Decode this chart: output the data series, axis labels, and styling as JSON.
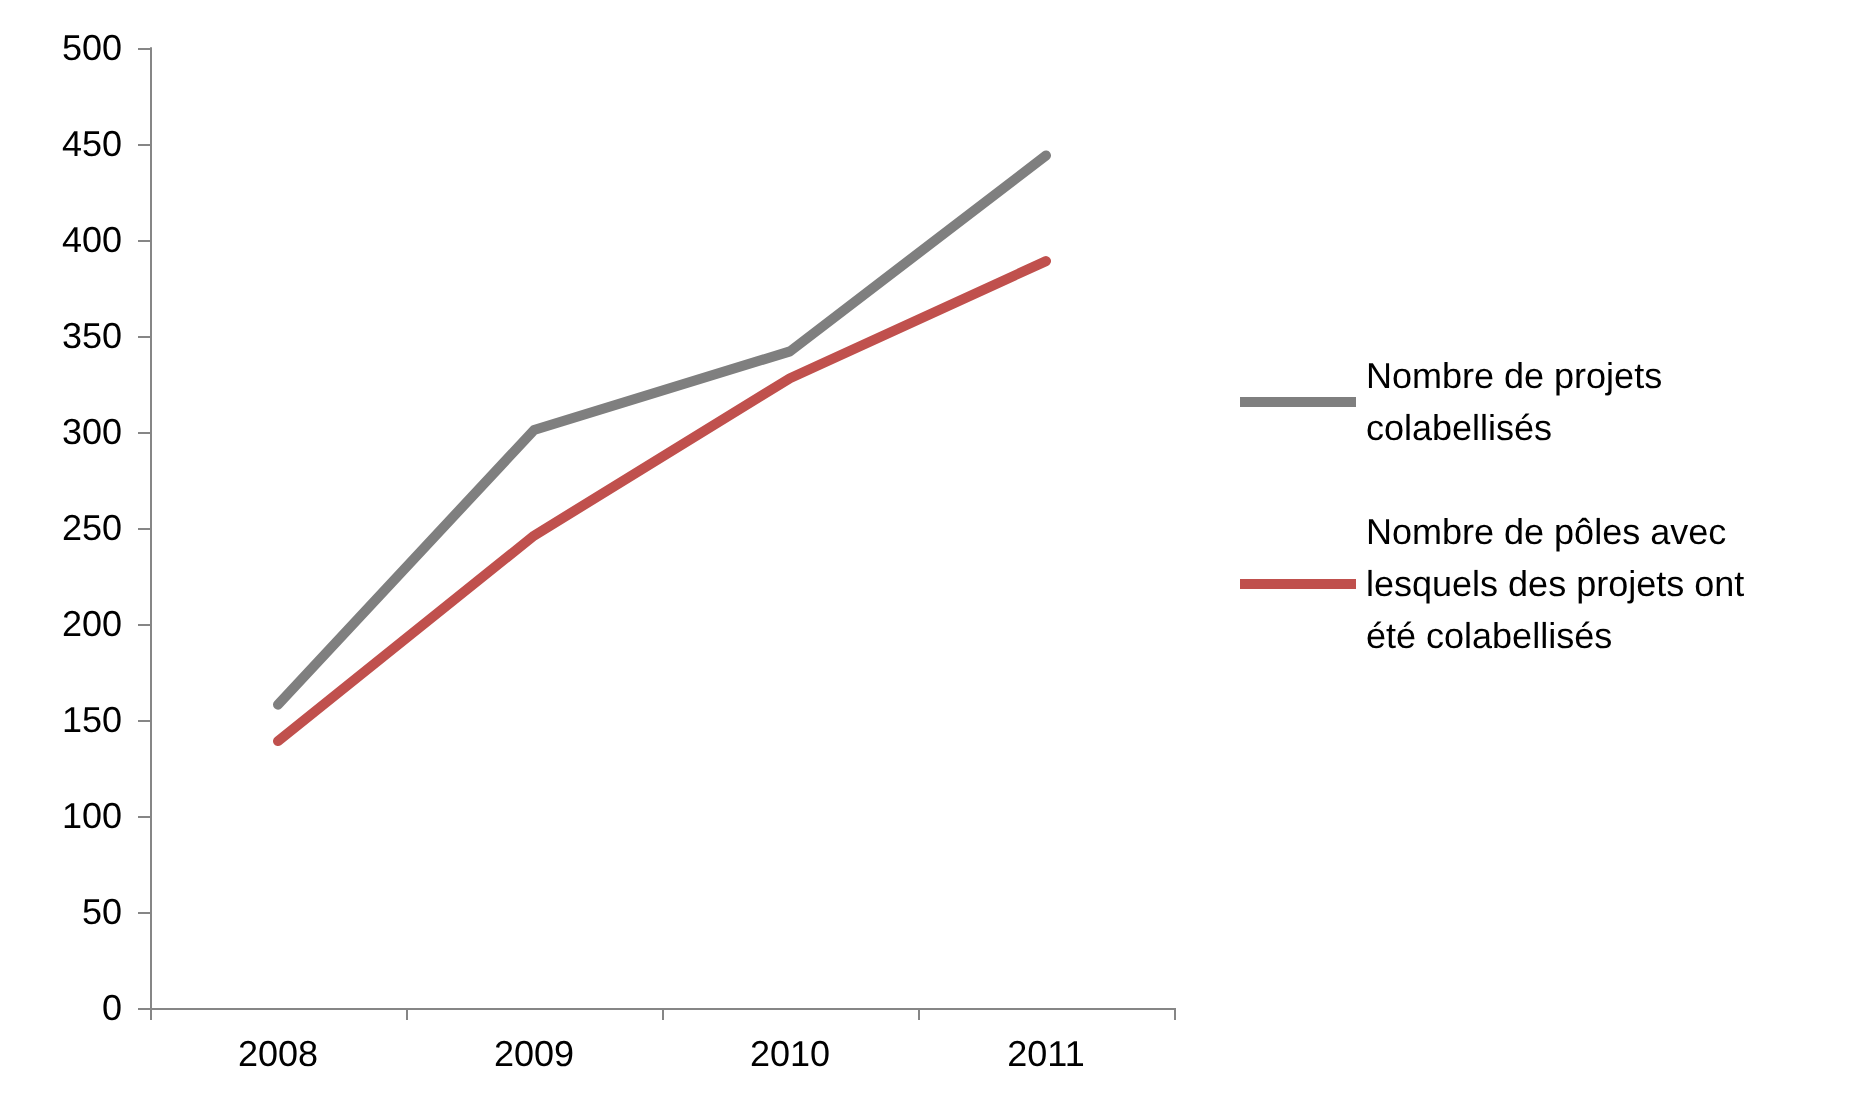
{
  "chart_data": {
    "type": "line",
    "categories": [
      "2008",
      "2009",
      "2010",
      "2011"
    ],
    "series": [
      {
        "name": "Nombre de projets colabellisés",
        "color": "#7f7f7f",
        "values": [
          158,
          301,
          342,
          444
        ]
      },
      {
        "name": "Nombre de pôles avec lesquels des projets ont été colabellisés",
        "color": "#c0504d",
        "values": [
          139,
          246,
          328,
          389
        ]
      }
    ],
    "ylim": [
      0,
      500
    ],
    "yticks": [
      0,
      50,
      100,
      150,
      200,
      250,
      300,
      350,
      400,
      450,
      500
    ],
    "grid": false,
    "legend": "right",
    "marker": "none",
    "line_style": "solid"
  }
}
